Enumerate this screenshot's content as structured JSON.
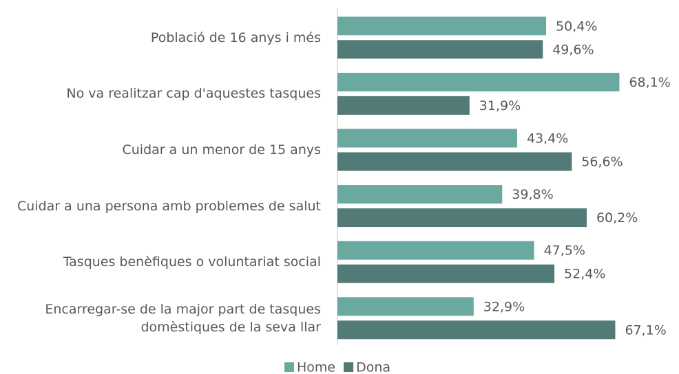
{
  "chart_data": {
    "type": "hbar",
    "categories": [
      "Població de 16 anys i més",
      "No va realitzar cap d'aquestes tasques",
      "Cuidar a un menor de 15 anys",
      "Cuidar a una persona amb problemes de salut",
      "Tasques benèfiques o voluntariat social",
      "Encarregar-se de la major part de tasques domèstiques de la seva llar"
    ],
    "series": [
      {
        "name": "Home",
        "color": "#6aa9a0",
        "values": [
          50.4,
          68.1,
          43.4,
          39.8,
          47.5,
          32.9
        ],
        "value_labels": [
          "50,4%",
          "68,1%",
          "43,4%",
          "39,8%",
          "47,5%",
          "32,9%"
        ]
      },
      {
        "name": "Dona",
        "color": "#527a76",
        "values": [
          49.6,
          31.9,
          56.6,
          60.2,
          52.4,
          67.1
        ],
        "value_labels": [
          "49,6%",
          "31,9%",
          "56,6%",
          "60,2%",
          "52,4%",
          "67,1%"
        ]
      }
    ],
    "xlim": [
      0,
      80
    ],
    "legend": "bottom"
  }
}
